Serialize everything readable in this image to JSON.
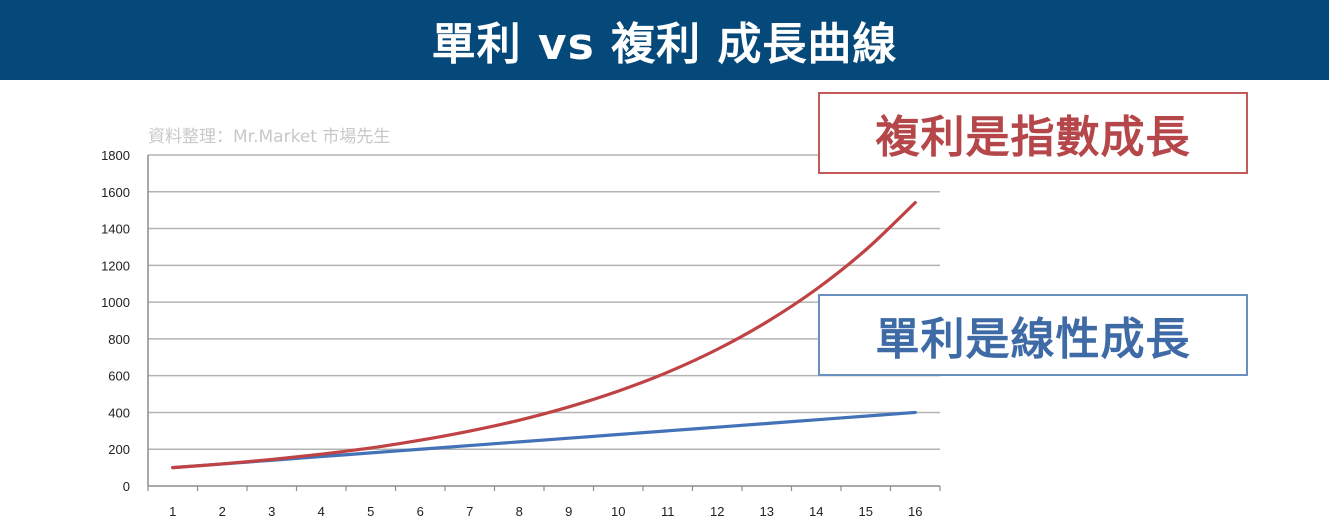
{
  "header": {
    "title": "單利 vs 複利 成長曲線"
  },
  "source_note": "資料整理：Mr.Market 市場先生",
  "callouts": {
    "compound": "複利是指數成長",
    "simple": "單利是線性成長"
  },
  "colors": {
    "header_bg": "#05497a",
    "compound_line": "#bf4245",
    "simple_line": "#4472b8",
    "gridline": "#b3b3b3"
  },
  "chart_data": {
    "type": "line",
    "title": "單利 vs 複利 成長曲線",
    "xlabel": "",
    "ylabel": "",
    "x": [
      1,
      2,
      3,
      4,
      5,
      6,
      7,
      8,
      9,
      10,
      11,
      12,
      13,
      14,
      15,
      16
    ],
    "ylim": [
      0,
      1800
    ],
    "yticks": [
      0,
      200,
      400,
      600,
      800,
      1000,
      1200,
      1400,
      1600,
      1800
    ],
    "grid": true,
    "legend": "none",
    "series": [
      {
        "key": "compound",
        "color": "#bf4245",
        "values": [
          100,
          120,
          144,
          173,
          207,
          249,
          299,
          358,
          430,
          516,
          619,
          743,
          892,
          1070,
          1284,
          1541
        ]
      },
      {
        "key": "simple",
        "color": "#4472b8",
        "values": [
          100,
          120,
          140,
          160,
          180,
          200,
          220,
          240,
          260,
          280,
          300,
          320,
          340,
          360,
          380,
          400
        ]
      }
    ]
  }
}
